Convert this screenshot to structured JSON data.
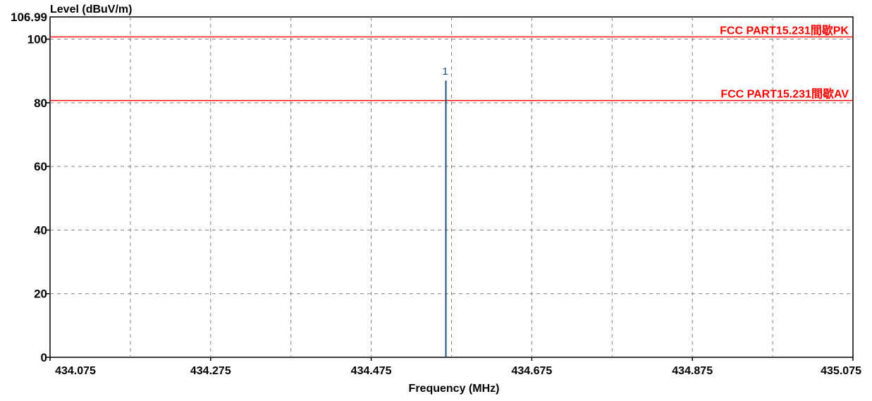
{
  "chart_data": {
    "type": "line",
    "ylabel": "Level (dBuV/m)",
    "xlabel": "Frequency (MHz)",
    "ylim": [
      0,
      106.99
    ],
    "xlim": [
      434.075,
      435.075
    ],
    "y_ticks": [
      "0",
      "20",
      "40",
      "60",
      "80",
      "100",
      "106.99"
    ],
    "y_tick_values": [
      0,
      20,
      40,
      60,
      80,
      100,
      106.99
    ],
    "x_ticks": [
      "434.075",
      "434.275",
      "434.475",
      "434.675",
      "434.875",
      "435.075"
    ],
    "x_tick_values": [
      434.075,
      434.275,
      434.475,
      434.675,
      434.875,
      435.075
    ],
    "grid": true,
    "grid_x_values": [
      434.175,
      434.275,
      434.375,
      434.475,
      434.575,
      434.675,
      434.775,
      434.875,
      434.975
    ],
    "grid_y_values": [
      20,
      40,
      60,
      80,
      100
    ],
    "limit_lines": [
      {
        "label": "FCC PART15.231間歇PK",
        "value": 100.7
      },
      {
        "label": "FCC PART15.231間歇AV",
        "value": 80.7
      }
    ],
    "series": [
      {
        "x": [
          434.568
        ],
        "y": [
          87.0
        ]
      }
    ],
    "markers": [
      {
        "label": "1",
        "x": 434.568,
        "y": 87.0
      }
    ],
    "colors": {
      "limit": "#ff0000",
      "trace": "#1f4e79",
      "grid": "#808080",
      "marker_label": "#1f4e79"
    }
  }
}
